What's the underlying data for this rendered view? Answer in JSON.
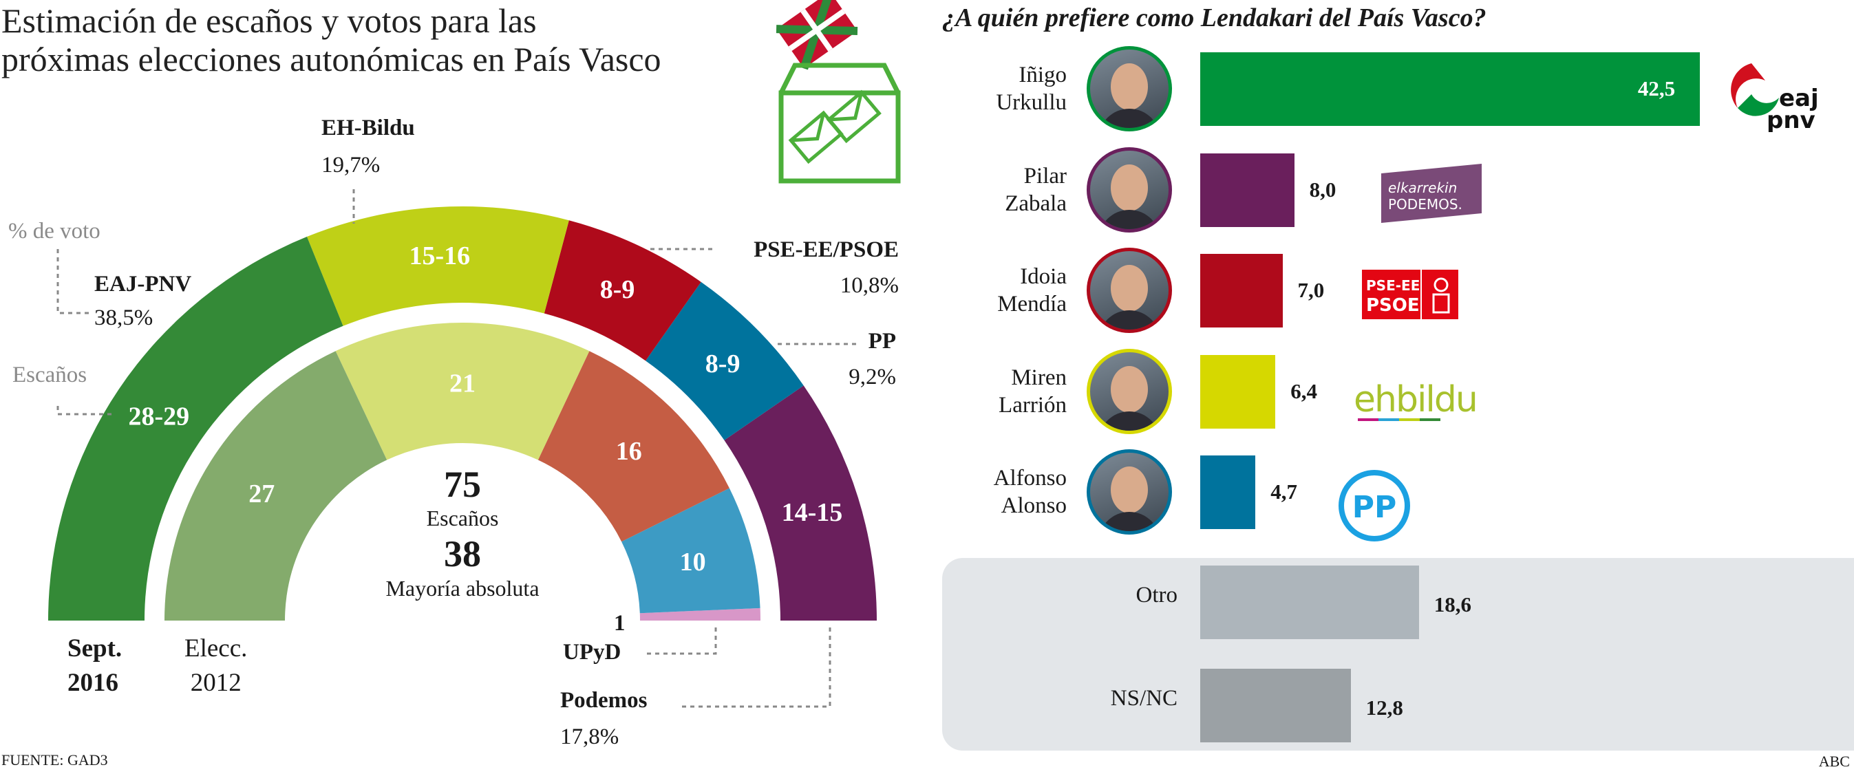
{
  "colors": {
    "eaj": "#348a37",
    "bildu": "#bfd017",
    "pse": "#af0a1b",
    "pp": "#00739d",
    "podemos": "#6a1f5c",
    "eaj12": "#84ab6c",
    "bildu12": "#d4df74",
    "pse12": "#c55d44",
    "pp12": "#3d9bc4",
    "upyd12": "#d897c8",
    "otro": "#adb5bb",
    "nsnc": "#9ba1a5",
    "ballot": "#4caf3a"
  },
  "left": {
    "title_line1": "Estimación de escaños y votos para las",
    "title_line2": "próximas elecciones autonómicas en País Vasco",
    "legend_vote": "% de voto",
    "legend_seats": "Escaños",
    "total_seats": "75",
    "total_seats_label": "Escaños",
    "majority": "38",
    "majority_label": "Mayoría absoluta",
    "ring_outer_label_1": "Sept.",
    "ring_outer_label_2": "2016",
    "ring_inner_label_1": "Elecc.",
    "ring_inner_label_2": "2012",
    "parties": [
      {
        "name": "EAJ-PNV",
        "vote": "38,5%"
      },
      {
        "name": "EH-Bildu",
        "vote": "19,7%"
      },
      {
        "name": "PSE-EE/PSOE",
        "vote": "10,8%"
      },
      {
        "name": "PP",
        "vote": "9,2%"
      },
      {
        "name": "Podemos",
        "vote": "17,8%"
      }
    ],
    "upyd_name": "UPyD",
    "upyd_seats": "1",
    "source": "FUENTE: GAD3"
  },
  "right": {
    "title": "¿A quién prefiere como Lendakari del País Vasco?",
    "candidates": [
      {
        "first": "Iñigo",
        "last": "Urkullu",
        "value": 42.5,
        "label": "42,5",
        "color": "#00933b",
        "party_logo": "eaj pnv"
      },
      {
        "first": "Pilar",
        "last": "Zabala",
        "value": 8.0,
        "label": "8,0",
        "color": "#6a1f5c",
        "party_logo": "elkarrekin PODEMOS"
      },
      {
        "first": "Idoia",
        "last": "Mendía",
        "value": 7.0,
        "label": "7,0",
        "color": "#af0a1b",
        "party_logo": "PSE-EE PSOE"
      },
      {
        "first": "Miren",
        "last": "Larrión",
        "value": 6.4,
        "label": "6,4",
        "color": "#d6d800",
        "party_logo": "ehbildu"
      },
      {
        "first": "Alfonso",
        "last": "Alonso",
        "value": 4.7,
        "label": "4,7",
        "color": "#00739d",
        "party_logo": "PP"
      }
    ],
    "others": [
      {
        "name": "Otro",
        "value": 18.6,
        "label": "18,6",
        "color": "#adb5bb"
      },
      {
        "name": "NS/NC",
        "value": 12.8,
        "label": "12,8",
        "color": "#9ba1a5"
      }
    ],
    "credit": "ABC"
  },
  "chart_data": [
    {
      "type": "pie",
      "subtype": "hemicycle",
      "title": "Estimación de escaños y votos para las próximas elecciones autonómicas en País Vasco",
      "total_seats": 75,
      "majority": 38,
      "series": [
        {
          "name": "Sept. 2016",
          "ring": "outer",
          "categories": [
            "EAJ-PNV",
            "EH-Bildu",
            "PSE-EE/PSOE",
            "PP",
            "Podemos"
          ],
          "labels": [
            "28-29",
            "15-16",
            "8-9",
            "8-9",
            "14-15"
          ],
          "values": [
            28.5,
            15.5,
            8.5,
            8.5,
            14.5
          ],
          "vote_pct": [
            38.5,
            19.7,
            10.8,
            9.2,
            17.8
          ]
        },
        {
          "name": "Elecc. 2012",
          "ring": "inner",
          "categories": [
            "EAJ-PNV",
            "EH-Bildu",
            "PSE-EE/PSOE",
            "PP",
            "UPyD"
          ],
          "labels": [
            "27",
            "21",
            "16",
            "10",
            "1"
          ],
          "values": [
            27,
            21,
            16,
            10,
            1
          ]
        }
      ]
    },
    {
      "type": "bar",
      "orientation": "horizontal",
      "title": "¿A quién prefiere como Lendakari del País Vasco?",
      "categories": [
        "Iñigo Urkullu",
        "Pilar Zabala",
        "Idoia Mendía",
        "Miren Larrión",
        "Alfonso Alonso",
        "Otro",
        "NS/NC"
      ],
      "values": [
        42.5,
        8.0,
        7.0,
        6.4,
        4.7,
        18.6,
        12.8
      ],
      "unit": "%"
    }
  ]
}
